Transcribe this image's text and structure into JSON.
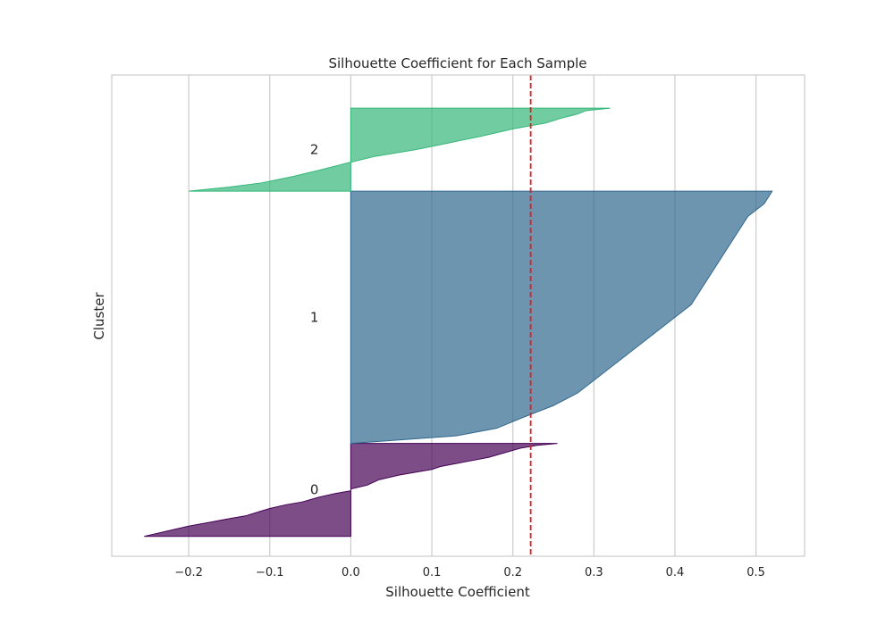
{
  "chart_data": {
    "type": "area",
    "title": "Silhouette Coefficient for Each Sample",
    "xlabel": "Silhouette Coefficient",
    "ylabel": "Cluster",
    "xlim": [
      -0.295,
      0.56
    ],
    "x_ticks": [
      -0.2,
      -0.1,
      0.0,
      0.1,
      0.2,
      0.3,
      0.4,
      0.5
    ],
    "x_tick_labels": [
      "−0.2",
      "−0.1",
      "0.0",
      "0.1",
      "0.2",
      "0.3",
      "0.4",
      "0.5"
    ],
    "grid": "vertical",
    "average_silhouette": 0.222,
    "average_line_color": "#e41a1c",
    "ylim": [
      0,
      58
    ],
    "clusters": [
      {
        "label": "0",
        "color": "#440154",
        "y_range": [
          2.4,
          13.6
        ],
        "profile": [
          [
            0,
            -0.255
          ],
          [
            0.08,
            -0.215
          ],
          [
            0.11,
            -0.2
          ],
          [
            0.15,
            -0.175
          ],
          [
            0.19,
            -0.15
          ],
          [
            0.22,
            -0.13
          ],
          [
            0.26,
            -0.115
          ],
          [
            0.3,
            -0.1
          ],
          [
            0.34,
            -0.08
          ],
          [
            0.37,
            -0.06
          ],
          [
            0.42,
            -0.04
          ],
          [
            0.46,
            -0.02
          ],
          [
            0.49,
            0.0
          ],
          [
            0.51,
            0.0
          ],
          [
            0.55,
            0.02
          ],
          [
            0.61,
            0.035
          ],
          [
            0.66,
            0.06
          ],
          [
            0.72,
            0.1
          ],
          [
            0.75,
            0.11
          ],
          [
            0.8,
            0.14
          ],
          [
            0.85,
            0.17
          ],
          [
            0.9,
            0.19
          ],
          [
            0.95,
            0.21
          ],
          [
            0.98,
            0.23
          ],
          [
            1.0,
            0.255
          ]
        ]
      },
      {
        "label": "1",
        "color": "#31688e",
        "y_range": [
          13.6,
          44.0
        ],
        "profile": [
          [
            0,
            0.0
          ],
          [
            0.03,
            0.13
          ],
          [
            0.06,
            0.18
          ],
          [
            0.1,
            0.21
          ],
          [
            0.15,
            0.25
          ],
          [
            0.2,
            0.28
          ],
          [
            0.25,
            0.3
          ],
          [
            0.3,
            0.32
          ],
          [
            0.35,
            0.34
          ],
          [
            0.4,
            0.36
          ],
          [
            0.45,
            0.38
          ],
          [
            0.5,
            0.4
          ],
          [
            0.55,
            0.42
          ],
          [
            0.6,
            0.43
          ],
          [
            0.65,
            0.44
          ],
          [
            0.7,
            0.45
          ],
          [
            0.75,
            0.46
          ],
          [
            0.8,
            0.47
          ],
          [
            0.85,
            0.48
          ],
          [
            0.9,
            0.49
          ],
          [
            0.95,
            0.51
          ],
          [
            1.0,
            0.52
          ]
        ]
      },
      {
        "label": "2",
        "color": "#35b779",
        "y_range": [
          44.0,
          54.0
        ],
        "profile": [
          [
            0,
            -0.2
          ],
          [
            0.05,
            -0.15
          ],
          [
            0.1,
            -0.11
          ],
          [
            0.18,
            -0.07
          ],
          [
            0.25,
            -0.04
          ],
          [
            0.3,
            -0.02
          ],
          [
            0.35,
            0.0
          ],
          [
            0.42,
            0.03
          ],
          [
            0.5,
            0.08
          ],
          [
            0.58,
            0.12
          ],
          [
            0.66,
            0.16
          ],
          [
            0.75,
            0.2
          ],
          [
            0.82,
            0.24
          ],
          [
            0.88,
            0.26
          ],
          [
            0.93,
            0.28
          ],
          [
            0.97,
            0.29
          ],
          [
            1.0,
            0.32
          ]
        ]
      }
    ]
  }
}
